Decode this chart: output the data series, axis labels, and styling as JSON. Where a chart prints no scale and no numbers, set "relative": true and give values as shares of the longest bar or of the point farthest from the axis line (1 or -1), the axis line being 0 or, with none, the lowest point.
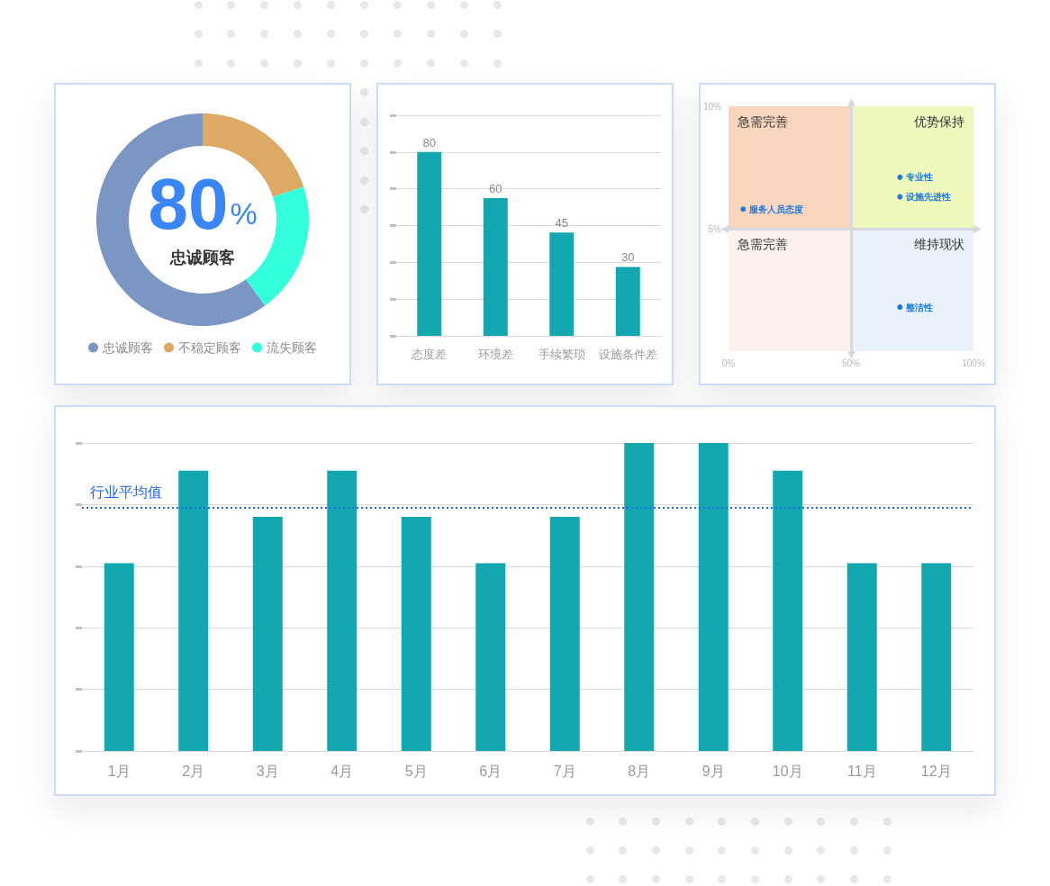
{
  "chart_data": [
    {
      "type": "donut",
      "categories": [
        "忠诚顾客",
        "不稳定顾客",
        "流失顾客"
      ],
      "values": [
        60,
        20,
        20
      ],
      "colors": [
        "#7b96c2",
        "#dcaa64",
        "#33ffdd"
      ],
      "annotations": [
        "80%",
        "忠诚顾客"
      ],
      "legend": "bottom"
    },
    {
      "type": "bar",
      "categories": [
        "态度差",
        "环境差",
        "手续繁琐",
        "设施条件差"
      ],
      "values": [
        80,
        60,
        45,
        30
      ],
      "color": "#13a8b0",
      "data_labels": true,
      "ylim": [
        0,
        96
      ],
      "yticks": [
        0,
        16,
        32,
        48,
        64,
        80,
        96
      ],
      "tick_labels": "x",
      "grid": "y"
    },
    {
      "type": "scatter",
      "series": [
        {
          "type": "bar",
          "x": [
            25,
            75
          ],
          "base": [
            5,
            5
          ],
          "values": [
            5,
            5
          ],
          "colors": [
            "#f8d5bd",
            "#eef8bd"
          ],
          "value_labels": [
            "急需完善",
            "优势保持"
          ]
        },
        {
          "type": "bar",
          "x": [
            25,
            75
          ],
          "base": [
            0,
            0
          ],
          "values": [
            5,
            5
          ],
          "colors": [
            "#fcf1ec",
            "#e9f1fb"
          ],
          "value_labels": [
            "急需完善",
            "维持现状"
          ]
        },
        {
          "type": "scatter",
          "x": [
            6,
            70,
            70,
            70
          ],
          "values": [
            5.8,
            7.1,
            6.3,
            1.8
          ],
          "value_labels": [
            "服务人员态度",
            "专业性",
            "设施先进性",
            "整洁性"
          ],
          "color": "#1a7be0",
          "marker": "circle"
        }
      ],
      "xlim": [
        0,
        100
      ],
      "xticks": [
        {
          "value": 0,
          "label": "0%"
        },
        {
          "value": 50,
          "label": "50%"
        },
        {
          "value": 100,
          "label": "100%"
        }
      ],
      "ylim": [
        0,
        10
      ],
      "yticks": [
        {
          "value": 5,
          "label": "5%"
        },
        {
          "value": 10,
          "label": "10%"
        }
      ],
      "ref_lines": [
        {
          "axis": "x",
          "value": 50,
          "color": "#d6d9dd"
        },
        {
          "axis": "y",
          "value": 5,
          "color": "#d6d9dd"
        }
      ]
    },
    {
      "type": "bar",
      "categories": [
        "1月",
        "2月",
        "3月",
        "4月",
        "5月",
        "6月",
        "7月",
        "8月",
        "9月",
        "10月",
        "11月",
        "12月"
      ],
      "values": [
        0.61,
        0.91,
        0.76,
        0.91,
        0.76,
        0.61,
        0.76,
        1,
        1,
        0.91,
        0.61,
        0.61
      ],
      "relative": true,
      "color": "#13a8b0",
      "grid": "y",
      "ref_lines": [
        {
          "axis": "y",
          "value": 0.79,
          "label": "行业平均值",
          "color": "#1f63f0",
          "line_style": "dotted"
        }
      ]
    }
  ]
}
